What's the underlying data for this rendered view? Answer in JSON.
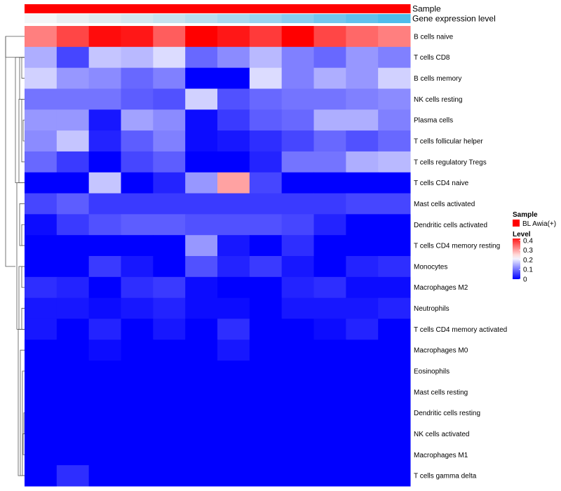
{
  "chart_data": {
    "type": "heatmap",
    "annotation_tracks": [
      {
        "label": "Sample",
        "colors": [
          "#ff0000",
          "#ff0000",
          "#ff0000",
          "#ff0000",
          "#ff0000",
          "#ff0000",
          "#ff0000",
          "#ff0000",
          "#ff0000",
          "#ff0000",
          "#ff0000",
          "#ff0000"
        ]
      },
      {
        "label": "Gene expression level",
        "colors": [
          "#f4f6f8",
          "#e9eef2",
          "#dfe9ef",
          "#d3e6ef",
          "#c6e2ef",
          "#b8ddef",
          "#a9d8ef",
          "#99d3ef",
          "#87cdee",
          "#73c6ed",
          "#61c0ec",
          "#4fbceb"
        ]
      }
    ],
    "rows": [
      "B cells naive",
      "T cells CD8",
      "B cells memory",
      "NK cells resting",
      "Plasma cells",
      "T cells follicular helper",
      "T cells regulatory  Tregs",
      "T cells CD4 naive",
      "Mast cells activated",
      "Dendritic cells activated",
      "T cells CD4 memory resting",
      "Monocytes",
      "Macrophages M2",
      "Neutrophils",
      "T cells CD4 memory activated",
      "Macrophages M0",
      "Eosinophils",
      "Mast cells resting",
      "Dendritic cells resting",
      "NK cells activated",
      "Macrophages M1",
      "T cells gamma delta"
    ],
    "values": [
      [
        0.33,
        0.38,
        0.43,
        0.42,
        0.36,
        0.44,
        0.42,
        0.39,
        0.44,
        0.38,
        0.35,
        0.33
      ],
      [
        0.15,
        0.06,
        0.17,
        0.16,
        0.19,
        0.09,
        0.12,
        0.16,
        0.11,
        0.09,
        0.13,
        0.11
      ],
      [
        0.18,
        0.13,
        0.12,
        0.09,
        0.11,
        0.0,
        0.0,
        0.19,
        0.11,
        0.15,
        0.13,
        0.18
      ],
      [
        0.1,
        0.1,
        0.1,
        0.08,
        0.07,
        0.18,
        0.07,
        0.09,
        0.1,
        0.1,
        0.11,
        0.12
      ],
      [
        0.13,
        0.13,
        0.02,
        0.14,
        0.12,
        0.01,
        0.05,
        0.08,
        0.09,
        0.15,
        0.15,
        0.11
      ],
      [
        0.12,
        0.17,
        0.03,
        0.08,
        0.11,
        0.01,
        0.02,
        0.04,
        0.06,
        0.09,
        0.07,
        0.09
      ],
      [
        0.09,
        0.05,
        0.0,
        0.06,
        0.08,
        0.0,
        0.0,
        0.03,
        0.1,
        0.1,
        0.15,
        0.16
      ],
      [
        0.0,
        0.0,
        0.17,
        0.0,
        0.03,
        0.13,
        0.3,
        0.06,
        0.0,
        0.0,
        0.0,
        0.0
      ],
      [
        0.06,
        0.08,
        0.05,
        0.05,
        0.05,
        0.05,
        0.05,
        0.05,
        0.05,
        0.05,
        0.06,
        0.06
      ],
      [
        0.01,
        0.05,
        0.07,
        0.08,
        0.08,
        0.07,
        0.07,
        0.07,
        0.06,
        0.03,
        0.0,
        0.0
      ],
      [
        0.0,
        0.0,
        0.0,
        0.0,
        0.0,
        0.13,
        0.02,
        0.0,
        0.04,
        0.0,
        0.0,
        0.0
      ],
      [
        0.0,
        0.0,
        0.05,
        0.02,
        0.0,
        0.07,
        0.03,
        0.05,
        0.02,
        0.0,
        0.03,
        0.04
      ],
      [
        0.04,
        0.03,
        0.0,
        0.04,
        0.05,
        0.01,
        0.0,
        0.0,
        0.03,
        0.04,
        0.01,
        0.01
      ],
      [
        0.02,
        0.02,
        0.01,
        0.02,
        0.03,
        0.01,
        0.01,
        0.0,
        0.02,
        0.02,
        0.02,
        0.03
      ],
      [
        0.02,
        0.0,
        0.03,
        0.0,
        0.02,
        0.0,
        0.04,
        0.0,
        0.0,
        0.01,
        0.03,
        0.0
      ],
      [
        0.0,
        0.0,
        0.01,
        0.0,
        0.0,
        0.0,
        0.02,
        0.0,
        0.0,
        0.0,
        0.0,
        0.0
      ],
      [
        0.0,
        0.0,
        0.0,
        0.0,
        0.0,
        0.0,
        0.0,
        0.0,
        0.0,
        0.0,
        0.0,
        0.0
      ],
      [
        0.0,
        0.0,
        0.0,
        0.0,
        0.0,
        0.0,
        0.0,
        0.0,
        0.0,
        0.0,
        0.0,
        0.0
      ],
      [
        0.0,
        0.0,
        0.0,
        0.0,
        0.0,
        0.0,
        0.0,
        0.0,
        0.0,
        0.0,
        0.0,
        0.0
      ],
      [
        0.0,
        0.0,
        0.0,
        0.0,
        0.0,
        0.0,
        0.0,
        0.0,
        0.0,
        0.0,
        0.0,
        0.0
      ],
      [
        0.0,
        0.0,
        0.0,
        0.0,
        0.0,
        0.0,
        0.0,
        0.0,
        0.0,
        0.0,
        0.0,
        0.0
      ],
      [
        0.0,
        0.04,
        0.0,
        0.0,
        0.0,
        0.0,
        0.0,
        0.0,
        0.0,
        0.0,
        0.0,
        0.0
      ]
    ],
    "color_scale": {
      "low": "#0000ff",
      "mid": "#ffffff",
      "high": "#ff0000",
      "domain": [
        0,
        0.22,
        0.44
      ]
    },
    "legend": {
      "sample_title": "Sample",
      "sample_entries": [
        {
          "label": "BL Awia(+)",
          "color": "#ff0000"
        }
      ],
      "level_title": "Level",
      "level_ticks": [
        "0.4",
        "0.3",
        "0.2",
        "0.1",
        "0"
      ],
      "level_tick_values": [
        0.4,
        0.3,
        0.2,
        0.1,
        0
      ],
      "level_range": [
        0,
        0.42
      ],
      "placement": "right"
    },
    "row_dendrogram": true
  }
}
